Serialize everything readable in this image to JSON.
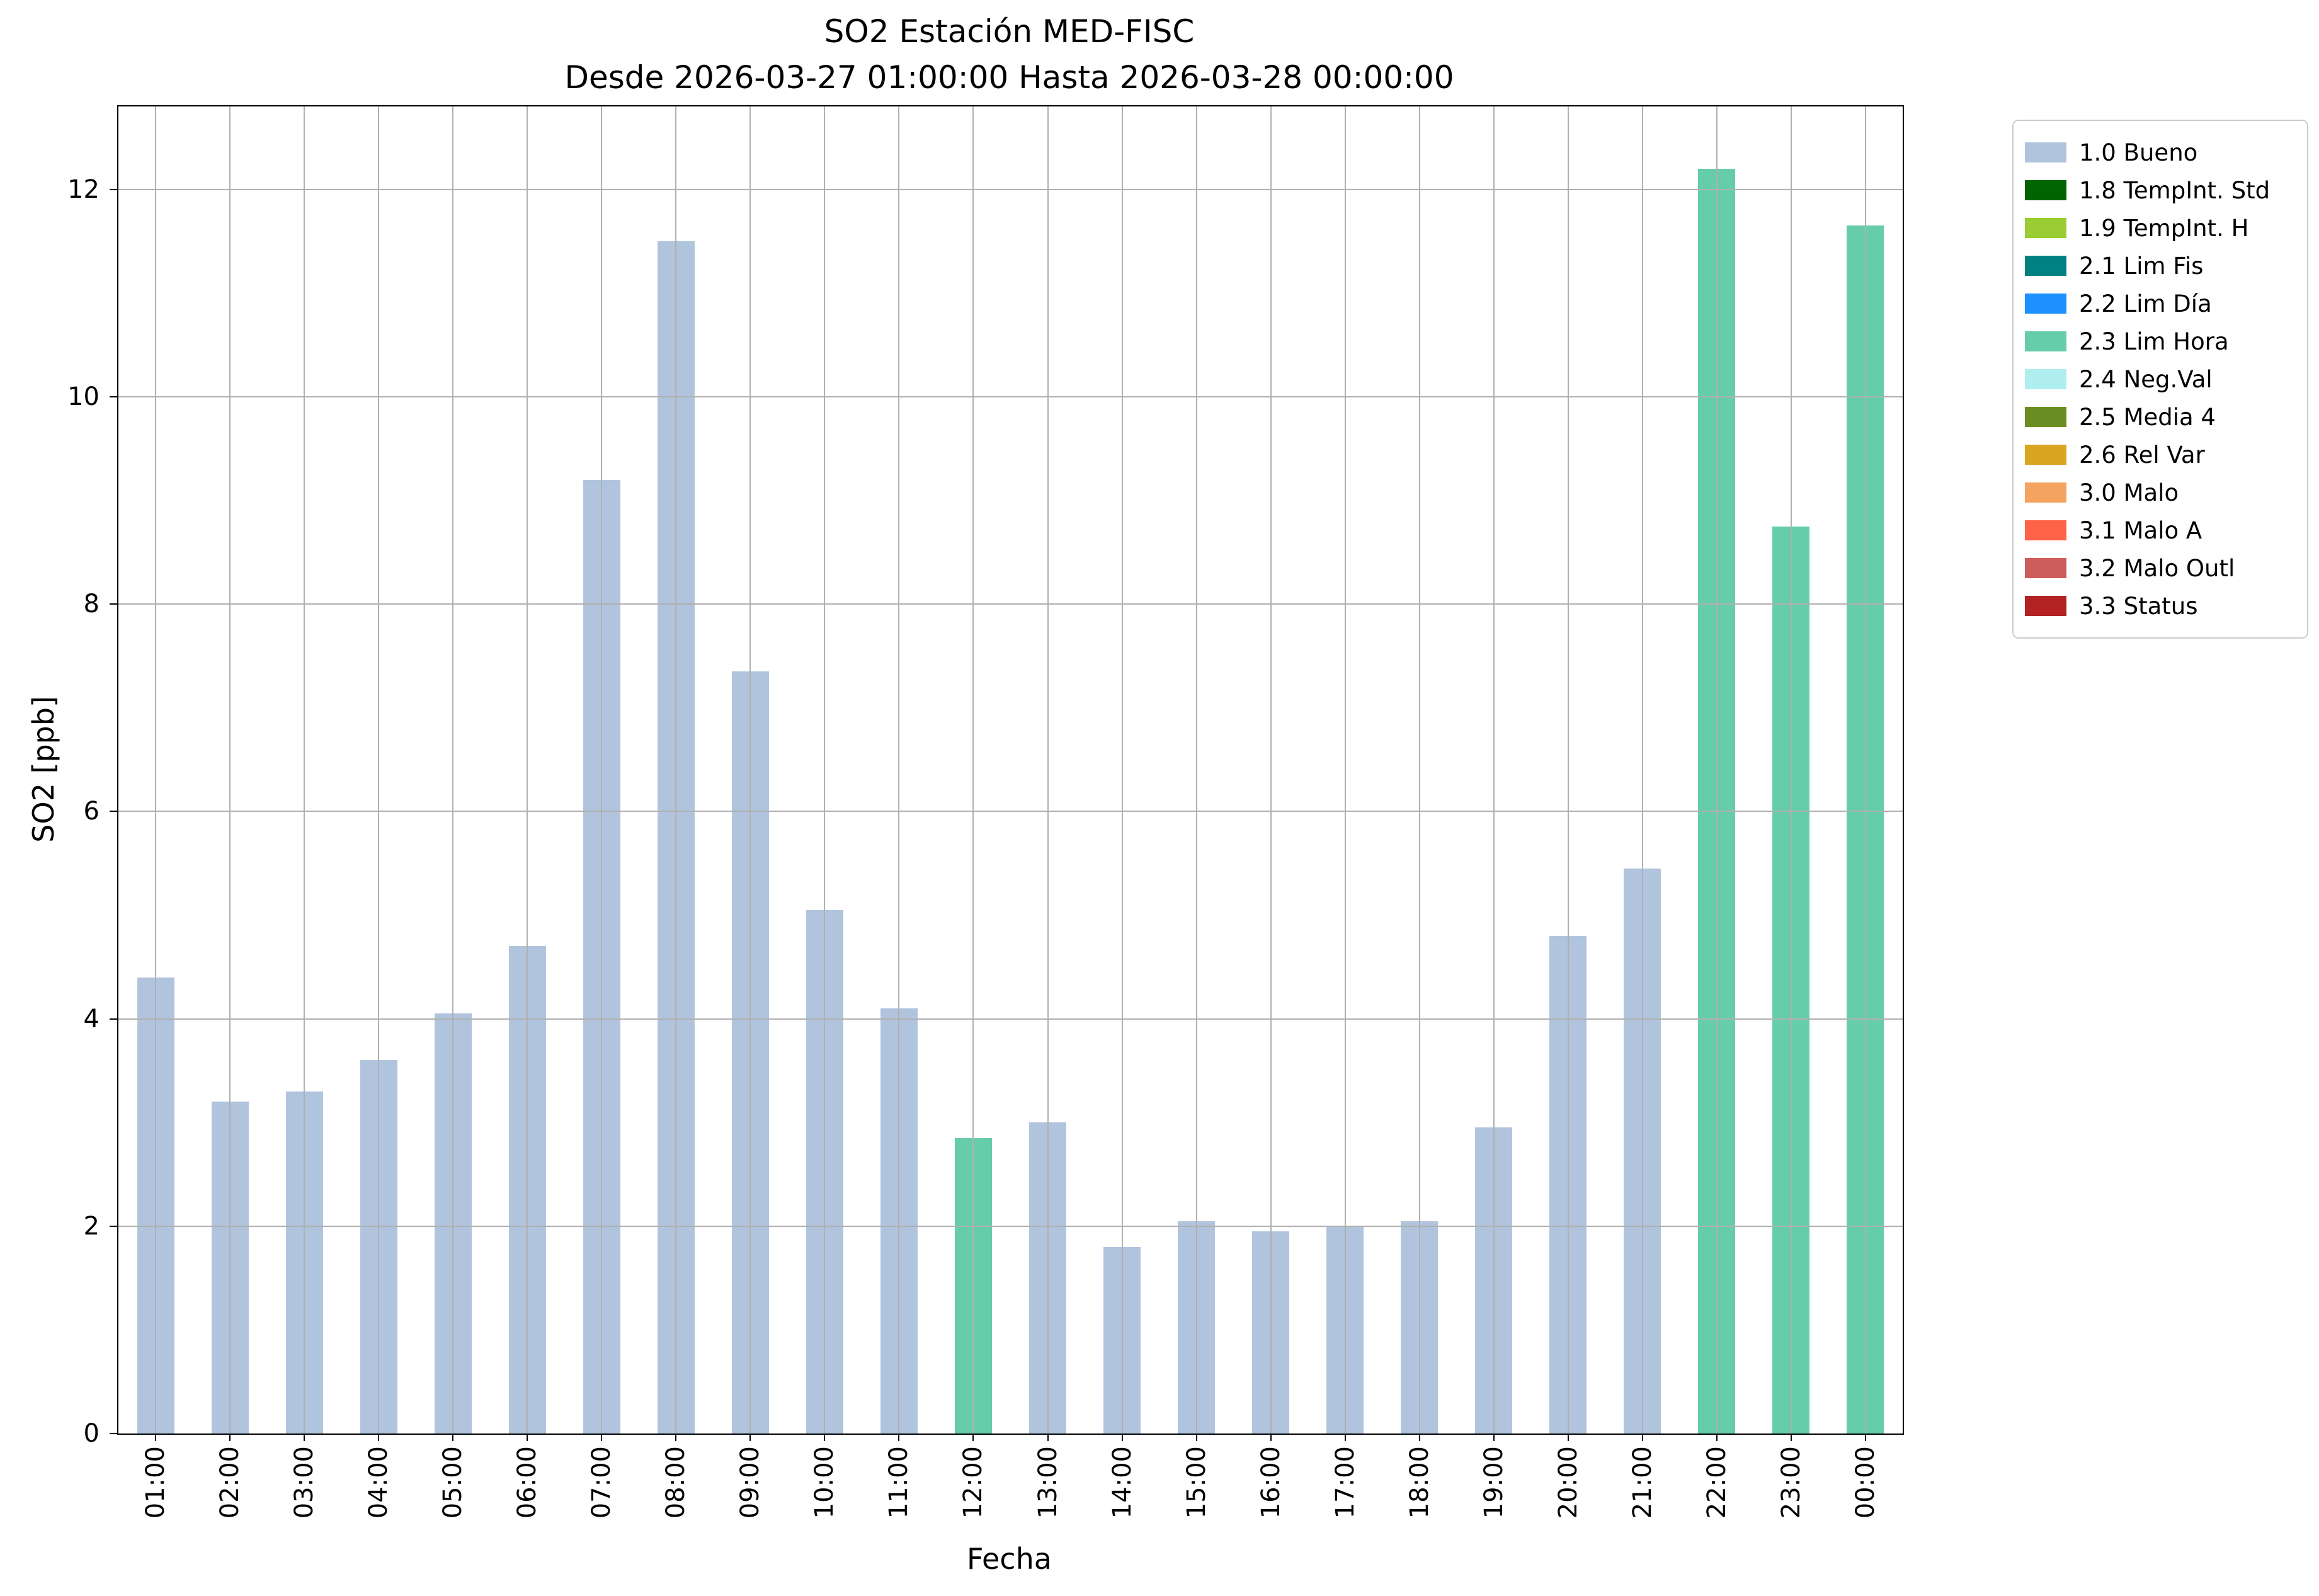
{
  "chart_data": {
    "type": "bar",
    "title": "SO2 Estación MED-FISC",
    "subtitle": "Desde 2026-03-27 01:00:00 Hasta 2026-03-28 00:00:00",
    "xlabel": "Fecha",
    "ylabel": "SO2 [ppb]",
    "ylim": [
      0,
      12.8
    ],
    "yticks": [
      0,
      2,
      4,
      6,
      8,
      10,
      12
    ],
    "grid": true,
    "legend_position": "outside-upper-right",
    "categories": [
      "01:00",
      "02:00",
      "03:00",
      "04:00",
      "05:00",
      "06:00",
      "07:00",
      "08:00",
      "09:00",
      "10:00",
      "11:00",
      "12:00",
      "13:00",
      "14:00",
      "15:00",
      "16:00",
      "17:00",
      "18:00",
      "19:00",
      "20:00",
      "21:00",
      "22:00",
      "23:00",
      "00:00"
    ],
    "values": [
      4.4,
      3.2,
      3.3,
      3.6,
      4.05,
      4.7,
      9.2,
      11.5,
      7.35,
      5.05,
      4.1,
      2.85,
      3.0,
      1.8,
      2.05,
      1.95,
      2.0,
      2.05,
      2.95,
      4.8,
      5.45,
      12.2,
      8.75,
      11.65
    ],
    "bar_status": [
      "1.0 Bueno",
      "1.0 Bueno",
      "1.0 Bueno",
      "1.0 Bueno",
      "1.0 Bueno",
      "1.0 Bueno",
      "1.0 Bueno",
      "1.0 Bueno",
      "1.0 Bueno",
      "1.0 Bueno",
      "1.0 Bueno",
      "2.3 Lim Hora",
      "1.0 Bueno",
      "1.0 Bueno",
      "1.0 Bueno",
      "1.0 Bueno",
      "1.0 Bueno",
      "1.0 Bueno",
      "1.0 Bueno",
      "1.0 Bueno",
      "1.0 Bueno",
      "2.3 Lim Hora",
      "2.3 Lim Hora",
      "2.3 Lim Hora"
    ],
    "legend": [
      {
        "label": "1.0 Bueno",
        "color": "#B0C4DE"
      },
      {
        "label": "1.8 TempInt. Std",
        "color": "#006400"
      },
      {
        "label": "1.9 TempInt. H",
        "color": "#9ACD32"
      },
      {
        "label": "2.1 Lim Fis",
        "color": "#008080"
      },
      {
        "label": "2.2 Lim Día",
        "color": "#1E90FF"
      },
      {
        "label": "2.3 Lim Hora",
        "color": "#66CDAA"
      },
      {
        "label": "2.4 Neg.Val",
        "color": "#AFEEEE"
      },
      {
        "label": "2.5 Media 4",
        "color": "#6B8E23"
      },
      {
        "label": "2.6 Rel Var",
        "color": "#DAA520"
      },
      {
        "label": "3.0 Malo",
        "color": "#F4A460"
      },
      {
        "label": "3.1 Malo A",
        "color": "#FF6347"
      },
      {
        "label": "3.2 Malo Outl",
        "color": "#CD5C5C"
      },
      {
        "label": "3.3 Status",
        "color": "#B22222"
      }
    ]
  }
}
